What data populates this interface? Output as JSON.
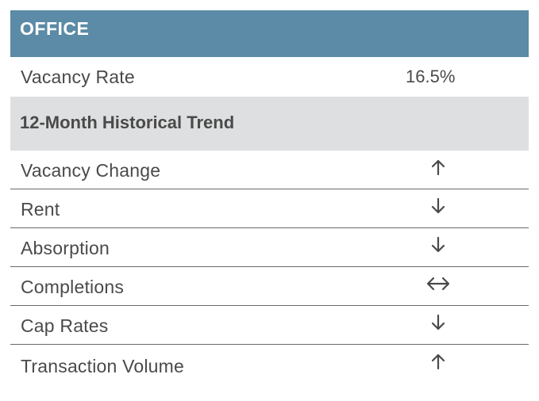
{
  "header": {
    "title": "OFFICE"
  },
  "vacancy": {
    "label": "Vacancy Rate",
    "value": "16.5%"
  },
  "trend": {
    "title": "12-Month Historical Trend",
    "rows": [
      {
        "label": "Vacancy Change",
        "direction": "up-arrow-icon"
      },
      {
        "label": "Rent",
        "direction": "down-arrow-icon"
      },
      {
        "label": "Absorption",
        "direction": "down-arrow-icon"
      },
      {
        "label": "Completions",
        "direction": "left-right-arrow-icon"
      },
      {
        "label": "Cap Rates",
        "direction": "down-arrow-icon"
      },
      {
        "label": "Transaction Volume",
        "direction": "up-arrow-icon"
      }
    ]
  },
  "colors": {
    "header_bg": "#5b8ba6",
    "subhead_bg": "#dedfe0",
    "text": "#4a4a4a"
  }
}
